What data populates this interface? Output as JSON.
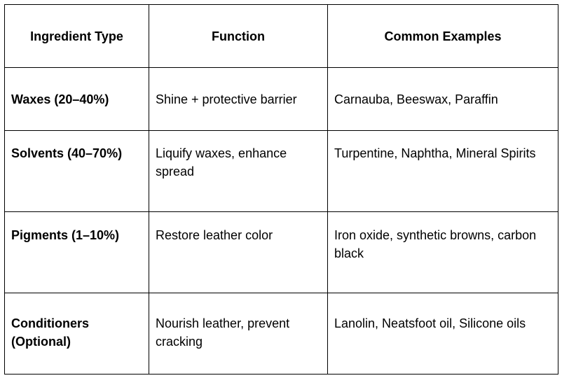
{
  "table": {
    "headers": [
      "Ingredient Type",
      "Function",
      "Common Examples"
    ],
    "rows": [
      {
        "type": "Waxes (20–40%)",
        "function": "Shine + protective barrier",
        "examples": "Carnauba, Beeswax, Paraffin"
      },
      {
        "type": "Solvents (40–70%)",
        "function": "Liquify waxes, enhance spread",
        "examples": "Turpentine, Naphtha, Mineral Spirits"
      },
      {
        "type": "Pigments (1–10%)",
        "function": "Restore leather color",
        "examples": "Iron oxide, synthetic browns, carbon black"
      },
      {
        "type": "Conditioners (Optional)",
        "function": "Nourish leather, prevent cracking",
        "examples": "Lanolin, Neatsfoot oil, Silicone oils"
      }
    ]
  }
}
